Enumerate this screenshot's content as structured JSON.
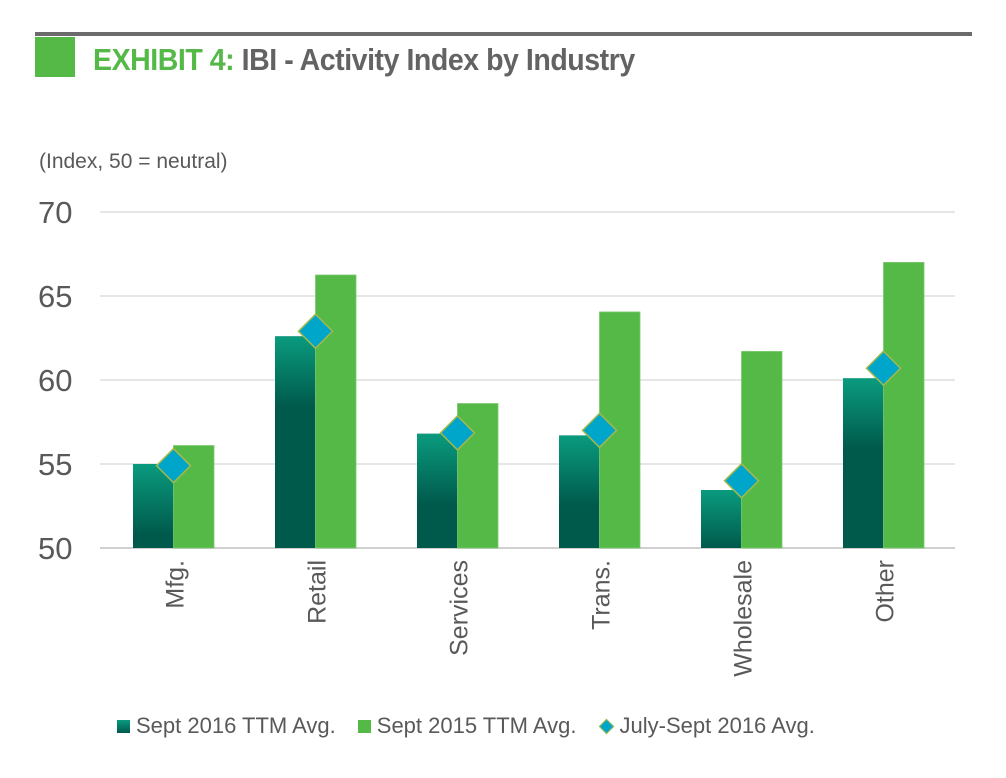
{
  "header": {
    "exhibit_label": "EXHIBIT 4:",
    "title": "IBI - Activity Index by Industry"
  },
  "colors": {
    "accent_green": "#55b948",
    "dark_green": "#005a4c",
    "dark_green_top": "#0a9b7e",
    "diamond_fill": "#00a6c9",
    "diamond_border": "#a5b84a",
    "title_gray": "#636363"
  },
  "chart_data": {
    "type": "bar",
    "title": "EXHIBIT 4: IBI - Activity Index by Industry",
    "ylabel": "(Index, 50 = neutral)",
    "xlabel": "",
    "ylim": [
      50,
      70
    ],
    "yticks": [
      "70",
      "65",
      "60",
      "55",
      "50"
    ],
    "ytick_values": [
      70,
      65,
      60,
      55,
      50
    ],
    "grid": true,
    "legend_position": "bottom",
    "categories": [
      "Mfg.",
      "Retail",
      "Services",
      "Trans.",
      "Wholesale",
      "Other"
    ],
    "series": [
      {
        "name": "Sept 2016 TTM Avg.",
        "type": "bar",
        "values": [
          55.0,
          62.6,
          56.8,
          56.7,
          53.45,
          60.1
        ]
      },
      {
        "name": "Sept 2015 TTM Avg.",
        "type": "bar",
        "values": [
          56.1,
          66.25,
          58.6,
          64.05,
          61.7,
          67.0
        ]
      },
      {
        "name": "July-Sept 2016 Avg.",
        "type": "marker-diamond",
        "values": [
          54.9,
          62.9,
          56.85,
          57.0,
          54.0,
          60.7
        ]
      }
    ]
  }
}
